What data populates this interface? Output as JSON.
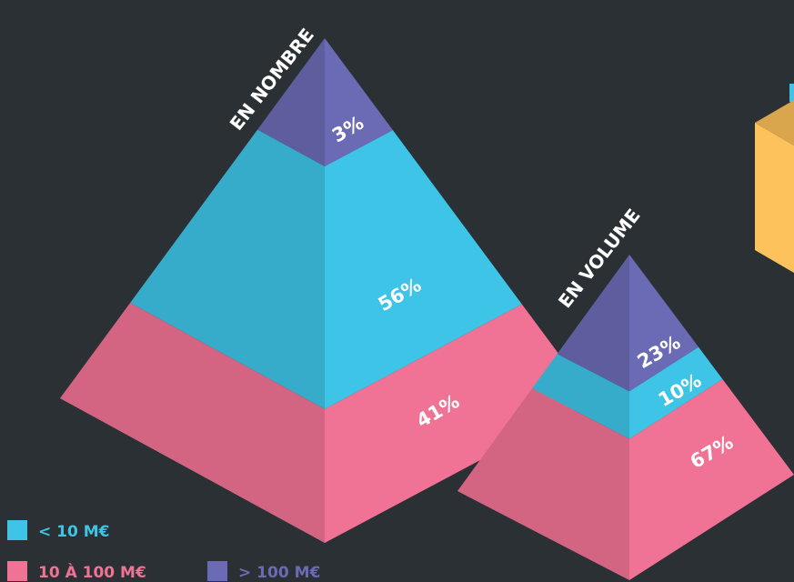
{
  "legend": [
    {
      "name": "< 10 M€",
      "color": "#3ec4e6"
    },
    {
      "name": "10 À 100 M€",
      "color": "#f07395"
    },
    {
      "name": "> 100 M€",
      "color": "#6b6bb5"
    }
  ],
  "chart_data": [
    {
      "type": "pyramid",
      "title": "EN NOMBRE",
      "values": [
        56,
        41,
        3
      ],
      "value_labels": [
        "56%",
        "41%",
        "3%"
      ]
    },
    {
      "type": "pyramid",
      "title": "EN VOLUME",
      "values": [
        10,
        67,
        23
      ],
      "value_labels": [
        "10%",
        "67%",
        "23%"
      ]
    }
  ]
}
